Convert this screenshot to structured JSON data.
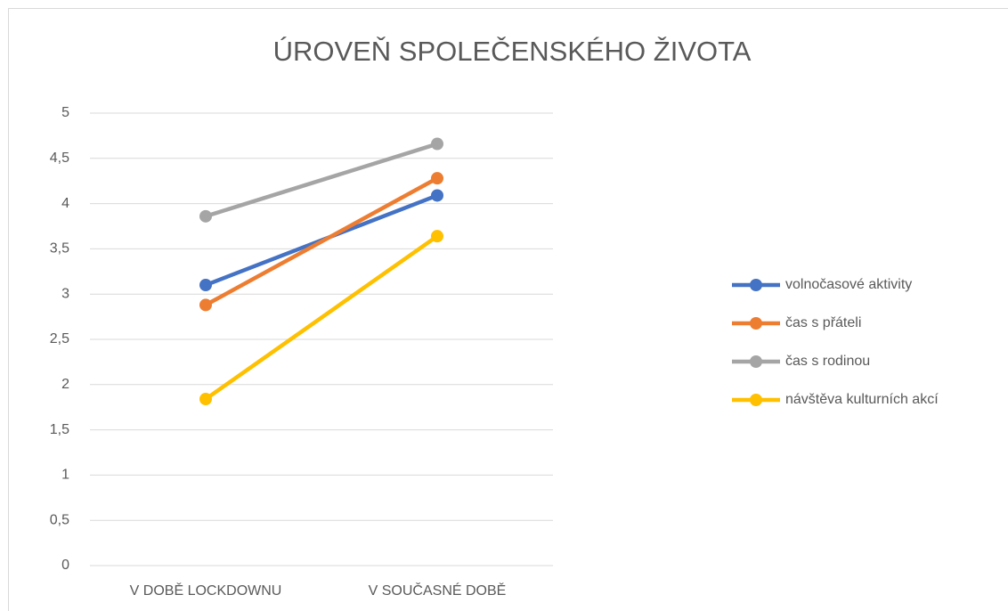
{
  "chart_data": {
    "type": "line",
    "title": "ÚROVEŇ SPOLEČENSKÉHO ŽIVOTA",
    "categories": [
      "V DOBĚ LOCKDOWNU",
      "V SOUČASNÉ DOBĚ"
    ],
    "series": [
      {
        "name": "volnočasové aktivity",
        "color": "#4472c4",
        "values": [
          3.1,
          4.09
        ]
      },
      {
        "name": "čas s přáteli",
        "color": "#ed7d31",
        "values": [
          2.88,
          4.28
        ]
      },
      {
        "name": "čas s rodinou",
        "color": "#a5a5a5",
        "values": [
          3.86,
          4.66
        ]
      },
      {
        "name": "návštěva kulturních akcí",
        "color": "#ffc000",
        "values": [
          1.84,
          3.64
        ]
      }
    ],
    "ylim": [
      0,
      5
    ],
    "yticks": [
      0,
      {
        "value": 0.5,
        "label": "0,5"
      },
      1,
      {
        "value": 1.5,
        "label": "1,5"
      },
      2,
      {
        "value": 2.5,
        "label": "2,5"
      },
      3,
      {
        "value": 3.5,
        "label": "3,5"
      },
      4,
      {
        "value": 4.5,
        "label": "4,5"
      },
      5
    ],
    "grid": true,
    "legend": "right"
  }
}
